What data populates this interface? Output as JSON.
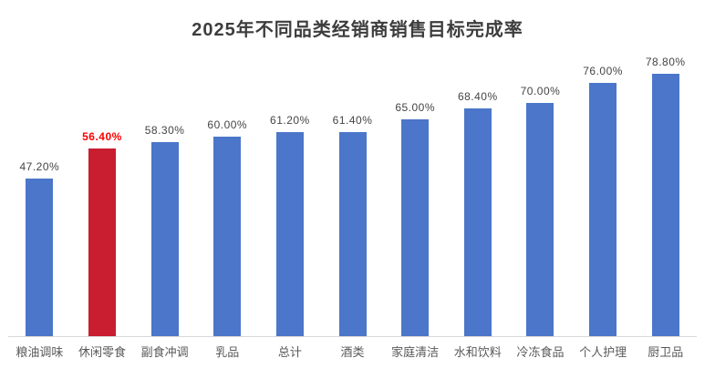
{
  "chart_data": {
    "type": "bar",
    "title": "2025年不同品类经销商销售目标完成率",
    "categories": [
      "粮油调味",
      "休闲零食",
      "副食冲调",
      "乳品",
      "总计",
      "酒类",
      "家庭清洁",
      "水和饮料",
      "冷冻食品",
      "个人护理",
      "厨卫品"
    ],
    "values": [
      47.2,
      56.4,
      58.3,
      60.0,
      61.2,
      61.4,
      65.0,
      68.4,
      70.0,
      76.0,
      78.8
    ],
    "labels": [
      "47.20%",
      "56.40%",
      "58.30%",
      "60.00%",
      "61.20%",
      "61.40%",
      "65.00%",
      "68.40%",
      "70.00%",
      "76.00%",
      "78.80%"
    ],
    "xlabel": "",
    "ylabel": "",
    "ylim": [
      0,
      90
    ],
    "grid": false,
    "legend": false,
    "highlight_index": 1,
    "colors": {
      "bar": "#4b76c9",
      "highlight_bar": "#c81e30",
      "value_label": "#444444",
      "highlight_value_label": "#ff0000",
      "title": "#3d3d3d",
      "category_label": "#595959",
      "axis_line": "#d9d9d9"
    }
  }
}
